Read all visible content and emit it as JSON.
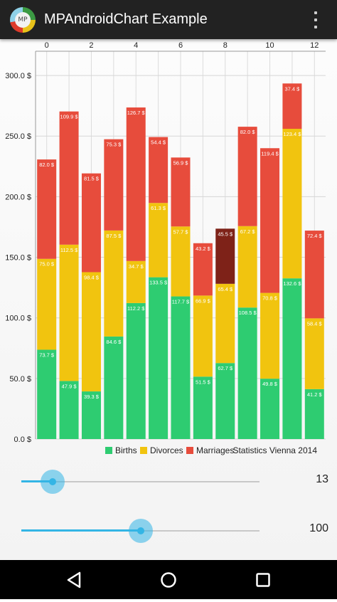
{
  "app": {
    "title": "MPAndroidChart Example",
    "icon_text": "MP",
    "icon": "app-logo-icon",
    "menu_icon": "overflow-menu-icon"
  },
  "colors": {
    "births": "#2ecc71",
    "divorces": "#f1c40f",
    "marriages": "#e74c3c",
    "highlight": "#7e2218",
    "accent": "#33b5e5",
    "appbar": "#222222"
  },
  "chart_data": {
    "type": "bar",
    "stacked": true,
    "categories": [
      "0",
      "1",
      "2",
      "3",
      "4",
      "5",
      "6",
      "7",
      "8",
      "9",
      "10",
      "11",
      "12"
    ],
    "x_tick_labels": [
      "0",
      "2",
      "4",
      "6",
      "8",
      "10",
      "12"
    ],
    "x_axis_position": "top",
    "series": [
      {
        "name": "Births",
        "values": [
          73.7,
          47.9,
          39.3,
          84.6,
          112.2,
          133.5,
          117.7,
          51.5,
          62.7,
          108.5,
          49.8,
          132.6,
          41.2
        ]
      },
      {
        "name": "Divorces",
        "values": [
          75.0,
          112.5,
          98.4,
          87.5,
          34.7,
          61.3,
          57.7,
          66.9,
          65.4,
          67.2,
          70.8,
          123.4,
          58.4
        ]
      },
      {
        "name": "Marriages",
        "values": [
          82.0,
          109.9,
          81.5,
          75.3,
          126.7,
          54.4,
          56.9,
          43.2,
          45.5,
          82.0,
          119.4,
          37.4,
          72.4
        ]
      }
    ],
    "data_labels": [
      [
        "73.7 $",
        "47.9 $",
        "39.3 $",
        "84.6 $",
        "112.2 $",
        "133.5 $",
        "117.7 $",
        "51.5 $",
        "62.7 $",
        "108.5 $",
        "49.8 $",
        "132.6 $",
        "41.2 $"
      ],
      [
        "75.0 $",
        "112.5 $",
        "98.4 $",
        "87.5 $",
        "34.7 $",
        "61.3 $",
        "57.7 $",
        "66.9 $",
        "65.4 $",
        "67.2 $",
        "70.8 $",
        "123.4 $",
        "58.4 $"
      ],
      [
        "82.0 $",
        "109.9 $",
        "81.5 $",
        "75.3 $",
        "126.7 $",
        "54.4 $",
        "56.9 $",
        "43.2 $",
        "45.5 $",
        "82.0 $",
        "119.4 $",
        "37.4 $",
        "72.4 $"
      ]
    ],
    "highlighted_bar": 8,
    "y_ticks": [
      0,
      50,
      100,
      150,
      200,
      250,
      300
    ],
    "y_tick_labels": [
      "0.0 $",
      "50.0 $",
      "100.0 $",
      "150.0 $",
      "200.0 $",
      "250.0 $",
      "300.0 $"
    ],
    "ylim": [
      0,
      320
    ],
    "grid": true,
    "legend_position": "bottom-right",
    "description": "Statistics Vienna 2014",
    "title": "",
    "xlabel": "",
    "ylabel": ""
  },
  "seekbars": [
    {
      "value": 13,
      "max": 100,
      "label": "13"
    },
    {
      "value": 50,
      "max": 100,
      "label": "100"
    }
  ],
  "nav": {
    "back_icon": "back-icon",
    "home_icon": "home-icon",
    "recents_icon": "recents-icon"
  }
}
